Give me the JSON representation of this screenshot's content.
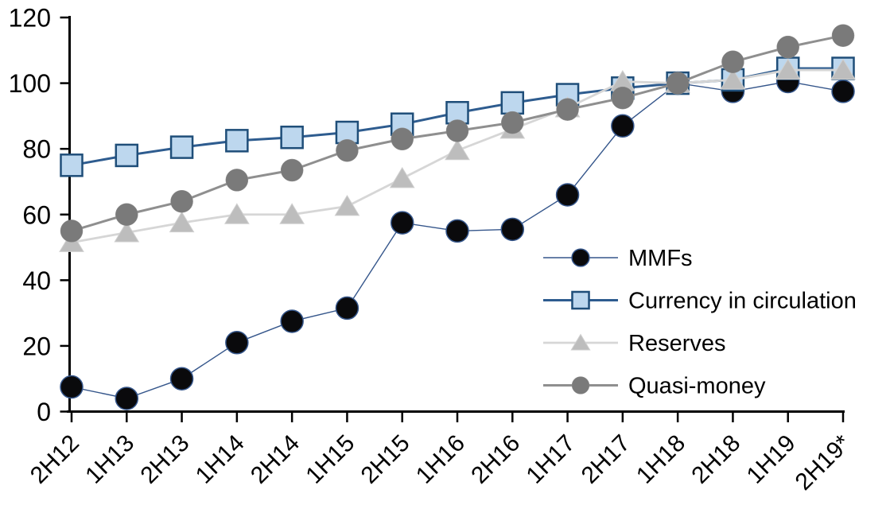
{
  "chart_data": {
    "type": "line",
    "title": "",
    "xlabel": "",
    "ylabel": "",
    "grid": false,
    "legend_position": "middle-right",
    "categories": [
      "2H12",
      "1H13",
      "2H13",
      "1H14",
      "2H14",
      "1H15",
      "2H15",
      "1H16",
      "2H16",
      "1H17",
      "2H17",
      "1H18",
      "2H18",
      "1H19",
      "2H19*"
    ],
    "series": [
      {
        "name": "MMFs",
        "values": [
          7.5,
          4,
          10,
          21,
          27.5,
          31.5,
          57.5,
          55,
          55.5,
          66,
          87,
          100,
          97.5,
          100.5,
          97.5
        ],
        "marker": "circle",
        "line_color": "#35568B",
        "line_width": 1.4,
        "marker_fill": "#0a0a0c",
        "marker_stroke": "#35568B",
        "marker_stroke_width": 1.5
      },
      {
        "name": "Currency in circulation",
        "values": [
          75,
          78,
          80.5,
          82.5,
          83.5,
          85,
          87.5,
          91,
          94,
          96.5,
          98.5,
          100,
          101,
          104.5,
          104.5
        ],
        "marker": "square",
        "line_color": "#2E5C8F",
        "line_width": 3,
        "marker_fill": "#BDD7EE",
        "marker_stroke": "#1F4E79",
        "marker_stroke_width": 2.5
      },
      {
        "name": "Reserves",
        "values": [
          51.5,
          54.5,
          57.5,
          60,
          60,
          62.5,
          71,
          79.5,
          86,
          92.5,
          100.5,
          100,
          101,
          104,
          104
        ],
        "marker": "triangle",
        "line_color": "#D6D6D6",
        "line_width": 2.8,
        "marker_fill": "#BDBDBD",
        "marker_stroke": "#CFCFCF",
        "marker_stroke_width": 1
      },
      {
        "name": "Quasi-money",
        "values": [
          55,
          60,
          64,
          70.5,
          73.5,
          79.5,
          83,
          85.5,
          88,
          92,
          95.5,
          100,
          106.5,
          111,
          114.5
        ],
        "marker": "circle",
        "line_color": "#8F8F8F",
        "line_width": 3,
        "marker_fill": "#7A7A7A",
        "marker_stroke": "#8F8F8F",
        "marker_stroke_width": 0.5
      }
    ],
    "y_axis": {
      "min": 0,
      "max": 120,
      "step": 20,
      "tick_labels": [
        "0",
        "20",
        "40",
        "60",
        "80",
        "100",
        "120"
      ]
    },
    "axis_color": "#000000"
  }
}
